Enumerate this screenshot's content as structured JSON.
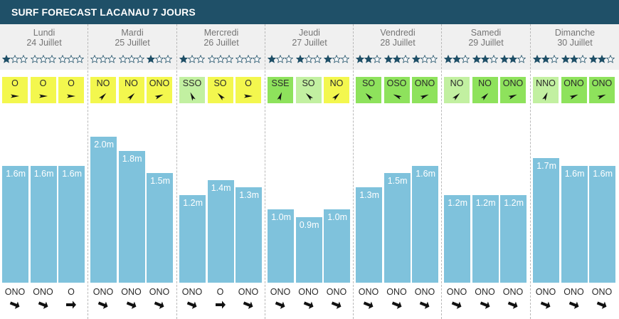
{
  "title": "SURF FORECAST LACANAU 7 JOURS",
  "colors": {
    "header": "#1f5068",
    "wave": "#7fc2dc",
    "wind_yellow": "#f3f74e",
    "wind_lightgreen": "#c2f0a1",
    "wind_green": "#8ee25c",
    "star_filled": "#1f4f67"
  },
  "days": [
    {
      "name": "Lundi",
      "date": "24 Juillet"
    },
    {
      "name": "Mardi",
      "date": "25 Juillet"
    },
    {
      "name": "Mercredi",
      "date": "26 Juillet"
    },
    {
      "name": "Jeudi",
      "date": "27 Juillet"
    },
    {
      "name": "Vendredi",
      "date": "28 Juillet"
    },
    {
      "name": "Samedi",
      "date": "29 Juillet"
    },
    {
      "name": "Dimanche",
      "date": "30 Juillet"
    }
  ],
  "chart_data": {
    "type": "bar",
    "unit": "m",
    "max_height": 2.2,
    "labels": [
      "1.6m",
      "1.6m",
      "1.6m",
      "2.0m",
      "1.8m",
      "1.5m",
      "1.2m",
      "1.4m",
      "1.3m",
      "1.0m",
      "0.9m",
      "1.0m",
      "1.3m",
      "1.5m",
      "1.6m",
      "1.2m",
      "1.2m",
      "1.2m",
      "1.7m",
      "1.6m",
      "1.6m"
    ],
    "values": [
      1.6,
      1.6,
      1.6,
      2.0,
      1.8,
      1.5,
      1.2,
      1.4,
      1.3,
      1.0,
      0.9,
      1.0,
      1.3,
      1.5,
      1.6,
      1.2,
      1.2,
      1.2,
      1.7,
      1.6,
      1.6
    ],
    "stars": [
      1,
      0,
      0,
      0,
      0,
      1,
      1,
      0,
      0,
      1,
      1,
      1,
      2,
      2,
      1,
      2,
      2,
      2,
      2,
      2,
      2
    ],
    "wind": [
      {
        "dir": "O",
        "color": "yellow"
      },
      {
        "dir": "O",
        "color": "yellow"
      },
      {
        "dir": "O",
        "color": "yellow"
      },
      {
        "dir": "NO",
        "color": "yellow"
      },
      {
        "dir": "NO",
        "color": "yellow"
      },
      {
        "dir": "ONO",
        "color": "yellow"
      },
      {
        "dir": "SSO",
        "color": "lightgreen"
      },
      {
        "dir": "SO",
        "color": "yellow"
      },
      {
        "dir": "O",
        "color": "yellow"
      },
      {
        "dir": "SSE",
        "color": "green"
      },
      {
        "dir": "SO",
        "color": "lightgreen"
      },
      {
        "dir": "NO",
        "color": "yellow"
      },
      {
        "dir": "SO",
        "color": "green"
      },
      {
        "dir": "OSO",
        "color": "green"
      },
      {
        "dir": "ONO",
        "color": "green"
      },
      {
        "dir": "NO",
        "color": "lightgreen"
      },
      {
        "dir": "NO",
        "color": "green"
      },
      {
        "dir": "ONO",
        "color": "green"
      },
      {
        "dir": "NNO",
        "color": "lightgreen"
      },
      {
        "dir": "ONO",
        "color": "green"
      },
      {
        "dir": "ONO",
        "color": "green"
      }
    ],
    "swell": [
      "ONO",
      "ONO",
      "O",
      "ONO",
      "ONO",
      "ONO",
      "ONO",
      "O",
      "ONO",
      "ONO",
      "ONO",
      "ONO",
      "ONO",
      "ONO",
      "ONO",
      "ONO",
      "ONO",
      "ONO",
      "ONO",
      "ONO",
      "ONO"
    ]
  }
}
